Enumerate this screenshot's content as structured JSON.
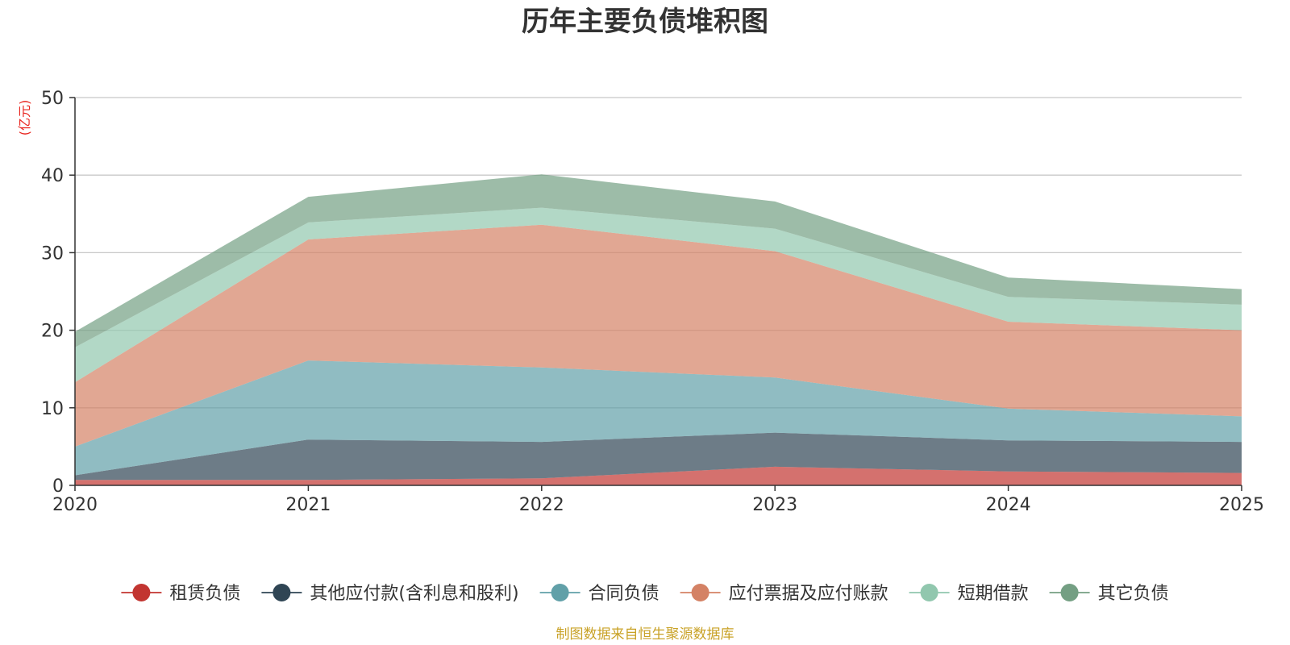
{
  "chart_data": {
    "type": "area",
    "stacked": true,
    "title": "历年主要负债堆积图",
    "unit_label": "(亿元)",
    "x": [
      "2020",
      "2021",
      "2022",
      "2023",
      "2024",
      "2025"
    ],
    "y_ticks": [
      "0",
      "10",
      "20",
      "30",
      "40",
      "50"
    ],
    "ylim": [
      0,
      50
    ],
    "grid": true,
    "legend_position": "bottom",
    "series": [
      {
        "name": "租赁负债",
        "color": "#c23531",
        "values": [
          0.7,
          0.7,
          0.9,
          2.4,
          1.8,
          1.6
        ]
      },
      {
        "name": "其他应付款(含利息和股利)",
        "color": "#2f4554",
        "values": [
          0.6,
          5.2,
          4.7,
          4.4,
          4.0,
          4.0
        ]
      },
      {
        "name": "合同负债",
        "color": "#61a0a8",
        "values": [
          3.7,
          10.2,
          9.6,
          7.1,
          4.1,
          3.3
        ]
      },
      {
        "name": "应付票据及应付账款",
        "color": "#d48265",
        "values": [
          8.3,
          15.6,
          18.4,
          16.3,
          11.2,
          11.1
        ]
      },
      {
        "name": "短期借款",
        "color": "#91c7ae",
        "values": [
          4.5,
          2.2,
          2.2,
          2.9,
          3.2,
          3.3
        ]
      },
      {
        "name": "其它负债",
        "color": "#749f83",
        "values": [
          2.0,
          3.3,
          4.3,
          3.5,
          2.5,
          2.0
        ]
      }
    ],
    "source_note": "制图数据来自恒生聚源数据库"
  }
}
